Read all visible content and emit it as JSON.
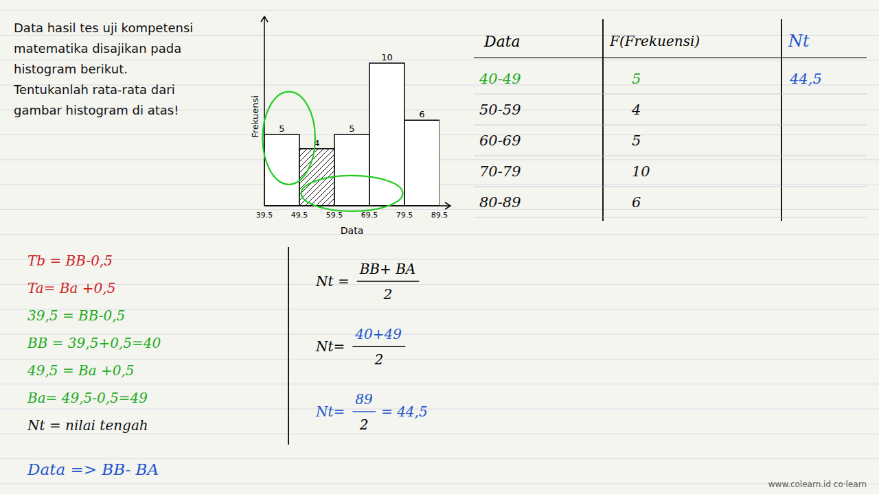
{
  "chart_data": {
    "type": "histogram",
    "bins": [
      39.5,
      49.5,
      59.5,
      69.5,
      79.5,
      89.5
    ],
    "values": [
      5,
      4,
      5,
      10,
      6
    ],
    "color": "white",
    "xlabel": "Data",
    "ylabel": "Frekuensi",
    "xlim": [
      39.5,
      89.5
    ],
    "ylim": [
      0,
      12.5
    ],
    "xticks": [
      39.5,
      49.5,
      59.5,
      69.5,
      79.5,
      89.5
    ],
    "tick_labels": "x",
    "data_labels": true,
    "grid": false,
    "annotations": {
      "intro": {
        "text": "Data hasil tes uji kompetensi\nmatematika disajikan pada\nhistogram berikut.\nTentukanlah rata-rata dari\ngambar histogram di atas!",
        "color": "#111111"
      },
      "table": {
        "headers": [
          {
            "text": "Data",
            "color": "black"
          },
          {
            "text": "F(Frekuensi)",
            "color": "black"
          },
          {
            "text": "Nt",
            "color": "#2255cc"
          }
        ],
        "rows": [
          [
            {
              "text": "40-49",
              "color": "#22aa22"
            },
            {
              "text": "5",
              "color": "#22aa22"
            },
            {
              "text": "44,5",
              "color": "#2255cc"
            }
          ],
          [
            {
              "text": "50-59",
              "color": "#111111"
            },
            {
              "text": "4",
              "color": "#111111"
            }
          ],
          [
            {
              "text": "60-69",
              "color": "#111111"
            },
            {
              "text": "5",
              "color": "#111111"
            }
          ],
          [
            {
              "text": "70-79",
              "color": "#111111"
            },
            {
              "text": "10",
              "color": "#111111"
            }
          ],
          [
            {
              "text": "80-89",
              "color": "#111111"
            },
            {
              "text": "6",
              "color": "#111111"
            }
          ]
        ]
      },
      "notes": [
        {
          "text": "Tb = BB-0,5",
          "color": "#cc2222"
        },
        {
          "text": "Ta= Ba +0,5",
          "color": "#cc2222"
        },
        {
          "text": "39,5 = BB-0,5",
          "color": "#22aa22"
        },
        {
          "text": "BB = 39,5+0,5=40",
          "color": "#22aa22"
        },
        {
          "text": "49,5 = Ba +0,5",
          "color": "#22aa22"
        },
        {
          "text": "Ba= 49,5-0,5=49",
          "color": "#22aa22"
        },
        {
          "text": "Nt = nilai tengah",
          "color": "#111111"
        }
      ],
      "formulas": [
        {
          "lhs": {
            "text": "Nt =",
            "color": "black"
          },
          "numerator": {
            "text": "BB+ BA",
            "color": "black"
          },
          "denominator": {
            "text": "2",
            "color": "black"
          },
          "bar_color": "black"
        },
        {
          "lhs": {
            "text": "Nt=",
            "color": "black"
          },
          "numerator": {
            "text": "40+49",
            "color": "#2255cc"
          },
          "denominator": {
            "text": "2",
            "color": "black"
          },
          "bar_color": "black"
        },
        {
          "lhs": {
            "text": "Nt=",
            "color": "#2255cc"
          },
          "numerator": {
            "text": "89",
            "color": "#2255cc"
          },
          "denominator": {
            "text": "2",
            "color": "black"
          },
          "bar_color": "#2255cc",
          "result": {
            "text": "= 44,5",
            "color": "#2255cc"
          }
        }
      ],
      "footer": {
        "text": "Data => BB- BA",
        "color": "#2255cc"
      },
      "watermark": {
        "text": "www.colearn.id  co·learn",
        "color": "#555555"
      }
    }
  }
}
